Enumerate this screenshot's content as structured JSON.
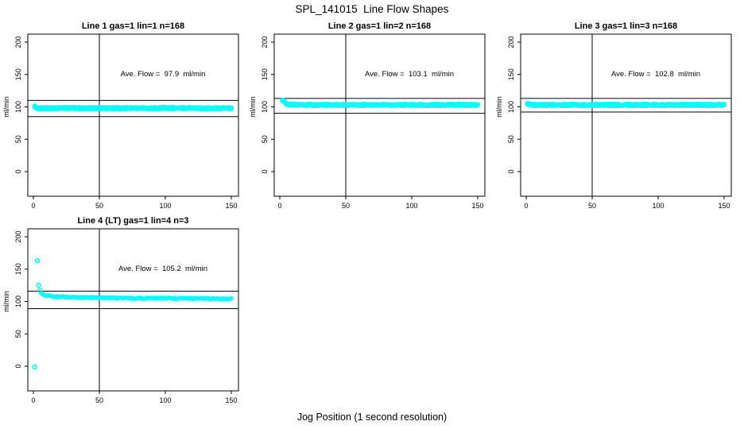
{
  "page_title": "SPL_141015  Line Flow Shapes",
  "xlabel": "Jog Position (1 second resolution)",
  "chart_data": {
    "type": "scatter",
    "layout": "grid 2 rows x 3 cols, panels at [r0c0, r0c1, r0c2, r1c0]",
    "marker": "open-circle",
    "marker_color": "#00FFFF",
    "axis_color": "#000000",
    "background": "#ffffff",
    "xlim": [
      0,
      150
    ],
    "ylim": [
      0,
      200
    ],
    "x_ticks": [
      0,
      50,
      100,
      150
    ],
    "y_ticks": [
      0,
      50,
      100,
      150,
      200
    ],
    "ylabel": "ml/min",
    "vertical_ref_x": 50,
    "grid": "off",
    "subplots": [
      {
        "title": "Line 1 gas=1 lin=1 n=168",
        "annotation": "Ave. Flow =  97.9  ml/min",
        "ave_flow": 97.9,
        "upper_ref": 110,
        "lower_ref": 85,
        "band_halfwidth": 1.6,
        "density": 3,
        "profile": [
          [
            1,
            101
          ],
          [
            2,
            99
          ],
          [
            4,
            98
          ],
          [
            10,
            98
          ],
          [
            50,
            98
          ],
          [
            100,
            98
          ],
          [
            150,
            98
          ]
        ],
        "outliers": []
      },
      {
        "title": "Line 2 gas=1 lin=2 n=168",
        "annotation": "Ave. Flow =  103.1  ml/min",
        "ave_flow": 103.1,
        "upper_ref": 113,
        "lower_ref": 90,
        "band_halfwidth": 1.6,
        "density": 3,
        "profile": [
          [
            2,
            110
          ],
          [
            3,
            109
          ],
          [
            4,
            107
          ],
          [
            5,
            105
          ],
          [
            7,
            104
          ],
          [
            10,
            103.5
          ],
          [
            20,
            103
          ],
          [
            50,
            103
          ],
          [
            100,
            103
          ],
          [
            150,
            103
          ]
        ],
        "outliers": []
      },
      {
        "title": "Line 3 gas=1 lin=3 n=168",
        "annotation": "Ave. Flow =  102.8  ml/min",
        "ave_flow": 102.8,
        "upper_ref": 113,
        "lower_ref": 92,
        "band_halfwidth": 1.7,
        "density": 3,
        "profile": [
          [
            1,
            105
          ],
          [
            3,
            104
          ],
          [
            6,
            103
          ],
          [
            20,
            103
          ],
          [
            50,
            103
          ],
          [
            100,
            103
          ],
          [
            150,
            103
          ]
        ],
        "outliers": []
      },
      {
        "title": "Line 4 (LT) gas=1 lin=4 n=3",
        "annotation": "Ave. Flow =  105.2  ml/min",
        "ave_flow": 105.2,
        "upper_ref": 116,
        "lower_ref": 89,
        "band_halfwidth": 0.9,
        "density": 1,
        "profile": [
          [
            6,
            112
          ],
          [
            8,
            110
          ],
          [
            12,
            108.5
          ],
          [
            18,
            107.5
          ],
          [
            25,
            107
          ],
          [
            40,
            106
          ],
          [
            60,
            105.5
          ],
          [
            80,
            105
          ],
          [
            100,
            105
          ],
          [
            120,
            104.5
          ],
          [
            150,
            104
          ]
        ],
        "outliers": [
          [
            1,
            -1
          ],
          [
            3,
            163
          ],
          [
            4,
            125
          ],
          [
            5,
            117
          ]
        ]
      }
    ]
  }
}
